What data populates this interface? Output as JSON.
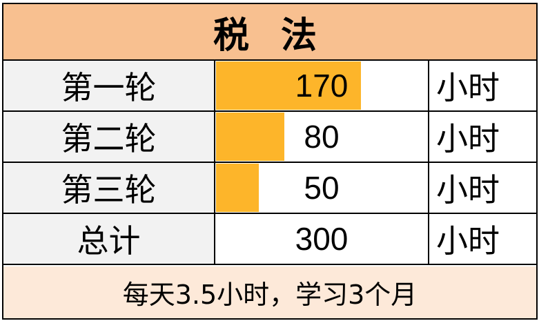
{
  "title": "税 法",
  "rows": [
    {
      "label": "第一轮",
      "value": 170,
      "unit": "小时",
      "bar": true
    },
    {
      "label": "第二轮",
      "value": 80,
      "unit": "小时",
      "bar": true
    },
    {
      "label": "第三轮",
      "value": 50,
      "unit": "小时",
      "bar": true
    },
    {
      "label": "总计",
      "value": 300,
      "unit": "小时",
      "bar": false
    }
  ],
  "footer": "每天3.5小时，学习3个月",
  "colors": {
    "title_bg": "#f8c090",
    "bar": "#fdb52a",
    "footer_bg": "#fde9d9",
    "label_bg": "#f2f2f2"
  }
}
